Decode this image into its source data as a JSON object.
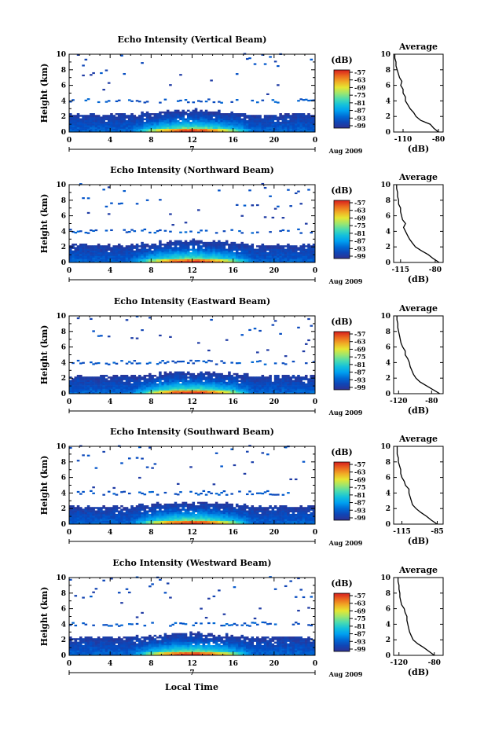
{
  "figure": {
    "xlabel": "Local Time",
    "date_label": "Aug 2009",
    "day_marker": "7",
    "colorbar_label": "(dB)",
    "colorbar_ticks": [
      "-57",
      "-63",
      "-69",
      "-75",
      "-81",
      "-87",
      "-93",
      "-99"
    ],
    "avg_title": "Average",
    "avg_xlabel": "(dB)",
    "ylabel": "Height (km)"
  },
  "chart_data": [
    {
      "type": "heatmap",
      "title": "Echo Intensity (Vertical Beam)",
      "xlabel": "Local Time",
      "ylabel": "Height (km)",
      "x_ticks": [
        "0",
        "4",
        "8",
        "12",
        "16",
        "20",
        "0"
      ],
      "xlim": [
        0,
        24
      ],
      "y_ticks": [
        "0",
        "2",
        "4",
        "6",
        "8",
        "10"
      ],
      "ylim": [
        0,
        10
      ],
      "colorbar": {
        "label": "(dB)",
        "range": [
          -99,
          -57
        ]
      },
      "average": {
        "title": "Average",
        "xlabel": "(dB)",
        "x_ticks": [
          "-110",
          "-80"
        ],
        "xlim": [
          -118,
          -76
        ],
        "height": [
          0,
          0.5,
          1,
          1.5,
          2,
          2.5,
          3,
          3.5,
          4,
          4.5,
          5,
          5.5,
          6,
          6.5,
          7,
          7.5,
          8,
          8.5,
          9,
          9.5,
          10
        ],
        "value": [
          -80,
          -84,
          -87,
          -95,
          -99,
          -101,
          -104,
          -106,
          -108,
          -108,
          -110,
          -110,
          -112,
          -111,
          -113,
          -114,
          -115,
          -116,
          -116,
          -117,
          -117
        ]
      }
    },
    {
      "type": "heatmap",
      "title": "Echo Intensity (Northward Beam)",
      "xlabel": "Local Time",
      "ylabel": "Height (km)",
      "x_ticks": [
        "0",
        "4",
        "8",
        "12",
        "16",
        "20",
        "0"
      ],
      "xlim": [
        0,
        24
      ],
      "y_ticks": [
        "0",
        "2",
        "4",
        "6",
        "8",
        "10"
      ],
      "ylim": [
        0,
        10
      ],
      "colorbar": {
        "label": "(dB)",
        "range": [
          -99,
          -57
        ]
      },
      "average": {
        "title": "Average",
        "xlabel": "(dB)",
        "x_ticks": [
          "-115",
          "-80"
        ],
        "xlim": [
          -122,
          -72
        ],
        "height": [
          0,
          0.5,
          1,
          1.5,
          2,
          2.5,
          3,
          3.5,
          4,
          4.5,
          5,
          5.5,
          6,
          6.5,
          7,
          7.5,
          8,
          8.5,
          9,
          9.5,
          10
        ],
        "value": [
          -76,
          -82,
          -87,
          -94,
          -100,
          -103,
          -106,
          -108,
          -110,
          -112,
          -110,
          -113,
          -114,
          -115,
          -115,
          -117,
          -117,
          -118,
          -118,
          -119,
          -119
        ]
      }
    },
    {
      "type": "heatmap",
      "title": "Echo Intensity (Eastward Beam)",
      "xlabel": "Local Time",
      "ylabel": "Height (km)",
      "x_ticks": [
        "0",
        "4",
        "8",
        "12",
        "16",
        "20",
        "0"
      ],
      "xlim": [
        0,
        24
      ],
      "y_ticks": [
        "0",
        "2",
        "4",
        "6",
        "8",
        "10"
      ],
      "ylim": [
        0,
        10
      ],
      "colorbar": {
        "label": "(dB)",
        "range": [
          -99,
          -57
        ]
      },
      "average": {
        "title": "Average",
        "xlabel": "(dB)",
        "x_ticks": [
          "-120",
          "-80"
        ],
        "xlim": [
          -126,
          -66
        ],
        "height": [
          0,
          0.5,
          1,
          1.5,
          2,
          2.5,
          3,
          3.5,
          4,
          4.5,
          5,
          5.5,
          6,
          6.5,
          7,
          7.5,
          8,
          8.5,
          9,
          9.5,
          10
        ],
        "value": [
          -70,
          -78,
          -86,
          -94,
          -99,
          -102,
          -104,
          -106,
          -107,
          -109,
          -112,
          -112,
          -115,
          -117,
          -118,
          -119,
          -120,
          -121,
          -121,
          -122,
          -122
        ]
      }
    },
    {
      "type": "heatmap",
      "title": "Echo Intensity (Southward Beam)",
      "xlabel": "Local Time",
      "ylabel": "Height (km)",
      "x_ticks": [
        "0",
        "4",
        "8",
        "12",
        "16",
        "20",
        "0"
      ],
      "xlim": [
        0,
        24
      ],
      "y_ticks": [
        "0",
        "2",
        "4",
        "6",
        "8",
        "10"
      ],
      "ylim": [
        0,
        10
      ],
      "colorbar": {
        "label": "(dB)",
        "range": [
          -99,
          -57
        ]
      },
      "average": {
        "title": "Average",
        "xlabel": "(dB)",
        "x_ticks": [
          "-115",
          "-85"
        ],
        "xlim": [
          -122,
          -80
        ],
        "height": [
          0,
          0.5,
          1,
          1.5,
          2,
          2.5,
          3,
          3.5,
          4,
          4.5,
          5,
          5.5,
          6,
          6.5,
          7,
          7.5,
          8,
          8.5,
          9,
          9.5,
          10
        ],
        "value": [
          -85,
          -90,
          -94,
          -99,
          -103,
          -106,
          -107,
          -108,
          -109,
          -109,
          -112,
          -113,
          -115,
          -116,
          -116,
          -117,
          -118,
          -118,
          -119,
          -119,
          -119
        ]
      }
    },
    {
      "type": "heatmap",
      "title": "Echo Intensity (Westward Beam)",
      "xlabel": "Local Time",
      "ylabel": "Height (km)",
      "x_ticks": [
        "0",
        "4",
        "8",
        "12",
        "16",
        "20",
        "0"
      ],
      "xlim": [
        0,
        24
      ],
      "y_ticks": [
        "0",
        "2",
        "4",
        "6",
        "8",
        "10"
      ],
      "ylim": [
        0,
        10
      ],
      "colorbar": {
        "label": "(dB)",
        "range": [
          -99,
          -57
        ]
      },
      "average": {
        "title": "Average",
        "xlabel": "(dB)",
        "x_ticks": [
          "-120",
          "-80"
        ],
        "xlim": [
          -126,
          -70
        ],
        "height": [
          0,
          0.5,
          1,
          1.5,
          2,
          2.5,
          3,
          3.5,
          4,
          4.5,
          5,
          5.5,
          6,
          6.5,
          7,
          7.5,
          8,
          8.5,
          9,
          9.5,
          10
        ],
        "value": [
          -80,
          -86,
          -92,
          -99,
          -104,
          -106,
          -108,
          -109,
          -110,
          -111,
          -111,
          -113,
          -114,
          -117,
          -118,
          -119,
          -119,
          -120,
          -120,
          -121,
          -121
        ]
      }
    }
  ]
}
